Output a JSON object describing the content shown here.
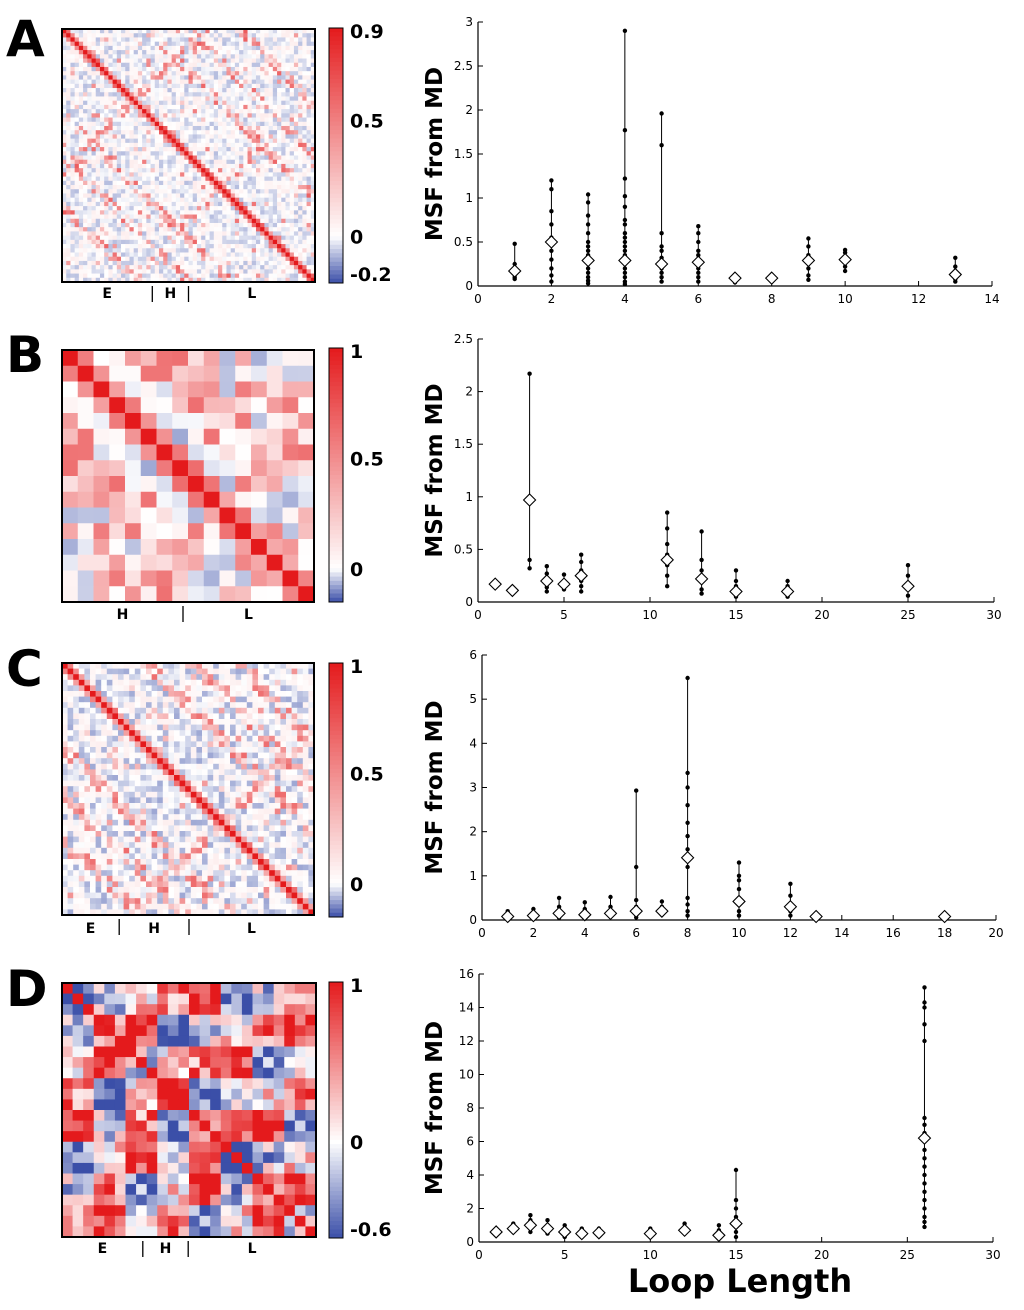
{
  "figure": {
    "xlabel": "Loop Length",
    "colorscale": {
      "low": "#3b4fa8",
      "mid": "#ffffff",
      "high": "#e41a1c"
    }
  },
  "panels": [
    {
      "letter": "A",
      "heatmap": {
        "n": 60,
        "colorbar_min": -0.2,
        "colorbar_max": 0.9,
        "colorbar_ticks": [
          "0.9",
          "0.5",
          "0",
          "-0.2"
        ],
        "colorbar_tick_values": [
          0.9,
          0.5,
          0,
          -0.2
        ],
        "regions": [
          {
            "label": "E",
            "start": 0,
            "end": 0.357
          },
          {
            "label": "H",
            "start": 0.357,
            "end": 0.5
          },
          {
            "label": "L",
            "start": 0.5,
            "end": 1.0
          }
        ],
        "style": "diagonal_off_lines"
      },
      "chart_data": {
        "type": "scatter",
        "title": "",
        "xlabel": "",
        "ylabel": "MSF from MD",
        "xlim": [
          0,
          14
        ],
        "ylim": [
          0,
          3
        ],
        "xticks": [
          0,
          2,
          4,
          6,
          8,
          10,
          12,
          14
        ],
        "yticks": [
          0,
          0.5,
          1,
          1.5,
          2,
          2.5,
          3
        ],
        "ytick_labels": [
          "0",
          "0.5",
          "1",
          "1.5",
          "2",
          "2.5",
          "3"
        ],
        "groups": [
          {
            "x": 1,
            "mean": 0.17,
            "points": [
              0.48,
              0.25,
              0.2,
              0.17,
              0.14,
              0.1,
              0.08
            ]
          },
          {
            "x": 2,
            "mean": 0.5,
            "points": [
              1.2,
              1.1,
              0.85,
              0.7,
              0.55,
              0.4,
              0.3,
              0.2,
              0.12,
              0.05
            ]
          },
          {
            "x": 3,
            "mean": 0.29,
            "points": [
              1.04,
              0.95,
              0.8,
              0.7,
              0.6,
              0.5,
              0.45,
              0.4,
              0.35,
              0.3,
              0.25,
              0.2,
              0.15,
              0.1,
              0.06,
              0.03
            ]
          },
          {
            "x": 4,
            "mean": 0.29,
            "points": [
              2.9,
              1.77,
              1.22,
              1.02,
              0.9,
              0.75,
              0.7,
              0.6,
              0.55,
              0.5,
              0.45,
              0.4,
              0.35,
              0.3,
              0.25,
              0.2,
              0.15,
              0.1,
              0.05,
              0.02
            ]
          },
          {
            "x": 5,
            "mean": 0.25,
            "points": [
              1.96,
              1.6,
              0.6,
              0.45,
              0.4,
              0.32,
              0.25,
              0.2,
              0.15,
              0.1,
              0.05
            ]
          },
          {
            "x": 6,
            "mean": 0.27,
            "points": [
              0.68,
              0.6,
              0.5,
              0.4,
              0.35,
              0.3,
              0.25,
              0.2,
              0.15,
              0.1,
              0.05
            ]
          },
          {
            "x": 7,
            "mean": 0.09,
            "points": [
              0.13,
              0.1,
              0.08,
              0.06,
              0.04
            ]
          },
          {
            "x": 8,
            "mean": 0.09,
            "points": [
              0.13,
              0.1,
              0.08,
              0.05
            ]
          },
          {
            "x": 9,
            "mean": 0.29,
            "points": [
              0.54,
              0.45,
              0.35,
              0.28,
              0.2,
              0.12,
              0.07
            ]
          },
          {
            "x": 10,
            "mean": 0.3,
            "points": [
              0.41,
              0.38,
              0.33,
              0.28,
              0.22,
              0.17
            ]
          },
          {
            "x": 13,
            "mean": 0.13,
            "points": [
              0.32,
              0.22,
              0.16,
              0.12,
              0.08,
              0.05
            ]
          }
        ]
      }
    },
    {
      "letter": "B",
      "heatmap": {
        "n": 16,
        "colorbar_min": -0.15,
        "colorbar_max": 1.0,
        "colorbar_ticks": [
          "1",
          "0.5",
          "0"
        ],
        "colorbar_tick_values": [
          1,
          0.5,
          0
        ],
        "regions": [
          {
            "label": "H",
            "start": 0,
            "end": 0.48
          },
          {
            "label": "L",
            "start": 0.48,
            "end": 1.0
          }
        ],
        "style": "diagonal_off_lines"
      },
      "chart_data": {
        "type": "scatter",
        "title": "",
        "xlabel": "",
        "ylabel": "MSF from MD",
        "xlim": [
          0,
          30
        ],
        "ylim": [
          0,
          2.5
        ],
        "xticks": [
          0,
          5,
          10,
          15,
          20,
          25,
          30
        ],
        "yticks": [
          0,
          0.5,
          1,
          1.5,
          2,
          2.5
        ],
        "ytick_labels": [
          "0",
          "0.5",
          "1",
          "1.5",
          "2",
          "2.5"
        ],
        "groups": [
          {
            "x": 1,
            "mean": 0.17,
            "points": [
              0.2,
              0.17,
              0.14
            ]
          },
          {
            "x": 2,
            "mean": 0.11,
            "points": [
              0.14,
              0.11,
              0.08
            ]
          },
          {
            "x": 3,
            "mean": 0.97,
            "points": [
              2.17,
              0.4,
              0.32
            ]
          },
          {
            "x": 4,
            "mean": 0.2,
            "points": [
              0.34,
              0.27,
              0.2,
              0.14,
              0.1
            ]
          },
          {
            "x": 5,
            "mean": 0.17,
            "points": [
              0.26,
              0.2,
              0.16,
              0.12
            ]
          },
          {
            "x": 6,
            "mean": 0.25,
            "points": [
              0.45,
              0.38,
              0.3,
              0.25,
              0.2,
              0.15,
              0.1
            ]
          },
          {
            "x": 11,
            "mean": 0.4,
            "points": [
              0.85,
              0.7,
              0.55,
              0.45,
              0.35,
              0.25,
              0.15
            ]
          },
          {
            "x": 13,
            "mean": 0.22,
            "points": [
              0.67,
              0.4,
              0.3,
              0.2,
              0.12,
              0.08
            ]
          },
          {
            "x": 15,
            "mean": 0.1,
            "points": [
              0.3,
              0.2,
              0.15,
              0.1,
              0.05
            ]
          },
          {
            "x": 18,
            "mean": 0.1,
            "points": [
              0.2,
              0.15,
              0.1,
              0.05
            ]
          },
          {
            "x": 25,
            "mean": 0.15,
            "points": [
              0.35,
              0.25,
              0.18,
              0.12,
              0.06
            ]
          }
        ]
      }
    },
    {
      "letter": "C",
      "heatmap": {
        "n": 45,
        "colorbar_min": -0.15,
        "colorbar_max": 1.0,
        "colorbar_ticks": [
          "1",
          "0.5",
          "0"
        ],
        "colorbar_tick_values": [
          1,
          0.5,
          0
        ],
        "regions": [
          {
            "label": "E",
            "start": 0,
            "end": 0.227
          },
          {
            "label": "H",
            "start": 0.227,
            "end": 0.504
          },
          {
            "label": "L",
            "start": 0.504,
            "end": 1.0
          }
        ],
        "style": "diagonal_off_lines"
      },
      "chart_data": {
        "type": "scatter",
        "title": "",
        "xlabel": "",
        "ylabel": "MSF from MD",
        "xlim": [
          0,
          20
        ],
        "ylim": [
          0,
          6
        ],
        "xticks": [
          0,
          2,
          4,
          6,
          8,
          10,
          12,
          14,
          16,
          18,
          20
        ],
        "yticks": [
          0,
          1,
          2,
          3,
          4,
          5,
          6
        ],
        "ytick_labels": [
          "0",
          "1",
          "2",
          "3",
          "4",
          "5",
          "6"
        ],
        "groups": [
          {
            "x": 1,
            "mean": 0.08,
            "points": [
              0.2,
              0.1,
              0.05
            ]
          },
          {
            "x": 2,
            "mean": 0.1,
            "points": [
              0.25,
              0.15,
              0.08,
              0.04
            ]
          },
          {
            "x": 3,
            "mean": 0.15,
            "points": [
              0.5,
              0.3,
              0.2,
              0.1,
              0.05
            ]
          },
          {
            "x": 4,
            "mean": 0.12,
            "points": [
              0.4,
              0.25,
              0.15,
              0.08
            ]
          },
          {
            "x": 5,
            "mean": 0.15,
            "points": [
              0.52,
              0.3,
              0.18,
              0.1
            ]
          },
          {
            "x": 6,
            "mean": 0.2,
            "points": [
              2.93,
              1.2,
              0.45,
              0.3,
              0.2,
              0.12,
              0.06
            ]
          },
          {
            "x": 7,
            "mean": 0.2,
            "points": [
              0.42,
              0.3,
              0.2,
              0.12
            ]
          },
          {
            "x": 8,
            "mean": 1.41,
            "points": [
              5.48,
              3.33,
              3.0,
              2.6,
              2.2,
              1.9,
              1.6,
              1.4,
              1.2,
              0.5,
              0.35,
              0.2,
              0.1
            ]
          },
          {
            "x": 10,
            "mean": 0.42,
            "points": [
              1.3,
              1.0,
              0.9,
              0.7,
              0.5,
              0.35,
              0.2,
              0.1
            ]
          },
          {
            "x": 12,
            "mean": 0.3,
            "points": [
              0.82,
              0.55,
              0.35,
              0.2,
              0.1
            ]
          },
          {
            "x": 13,
            "mean": 0.08,
            "points": [
              0.15,
              0.08,
              0.04
            ]
          },
          {
            "x": 18,
            "mean": 0.08,
            "points": [
              0.15,
              0.1,
              0.05
            ]
          }
        ]
      }
    },
    {
      "letter": "D",
      "heatmap": {
        "n": 24,
        "colorbar_min": -0.6,
        "colorbar_max": 1.0,
        "colorbar_ticks": [
          "1",
          "0",
          "-0.6"
        ],
        "colorbar_tick_values": [
          1,
          0,
          -0.6
        ],
        "regions": [
          {
            "label": "E",
            "start": 0,
            "end": 0.318
          },
          {
            "label": "H",
            "start": 0.318,
            "end": 0.497
          },
          {
            "label": "L",
            "start": 0.497,
            "end": 1.0
          }
        ],
        "style": "block_mixed"
      },
      "chart_data": {
        "type": "scatter",
        "title": "",
        "xlabel": "Loop Length",
        "ylabel": "MSF from MD",
        "xlim": [
          0,
          30
        ],
        "ylim": [
          0,
          16
        ],
        "xticks": [
          0,
          5,
          10,
          15,
          20,
          25,
          30
        ],
        "yticks": [
          0,
          2,
          4,
          6,
          8,
          10,
          12,
          14,
          16
        ],
        "ytick_labels": [
          "0",
          "2",
          "4",
          "6",
          "8",
          "10",
          "12",
          "14",
          "16"
        ],
        "groups": [
          {
            "x": 1,
            "mean": 0.6,
            "points": [
              0.7,
              0.6,
              0.5
            ]
          },
          {
            "x": 2,
            "mean": 0.8,
            "points": [
              1.1,
              0.9,
              0.7,
              0.6
            ]
          },
          {
            "x": 3,
            "mean": 1.0,
            "points": [
              1.6,
              1.3,
              1.0,
              0.8,
              0.6
            ]
          },
          {
            "x": 4,
            "mean": 0.8,
            "points": [
              1.3,
              1.0,
              0.8,
              0.6,
              0.5
            ]
          },
          {
            "x": 5,
            "mean": 0.6,
            "points": [
              1.0,
              0.8,
              0.6,
              0.4,
              0.3
            ]
          },
          {
            "x": 6,
            "mean": 0.5,
            "points": [
              0.8,
              0.6,
              0.5,
              0.3
            ]
          },
          {
            "x": 7,
            "mean": 0.55,
            "points": [
              0.8,
              0.6,
              0.5,
              0.4
            ]
          },
          {
            "x": 10,
            "mean": 0.5,
            "points": [
              0.8,
              0.6,
              0.4,
              0.3
            ]
          },
          {
            "x": 12,
            "mean": 0.7,
            "points": [
              1.1,
              0.9,
              0.7,
              0.5
            ]
          },
          {
            "x": 14,
            "mean": 0.4,
            "points": [
              1.0,
              0.7,
              0.4,
              0.25
            ]
          },
          {
            "x": 15,
            "mean": 1.1,
            "points": [
              4.3,
              2.5,
              2.0,
              1.5,
              1.2,
              0.9,
              0.6,
              0.3
            ]
          },
          {
            "x": 26,
            "mean": 6.2,
            "points": [
              15.2,
              14.3,
              14.0,
              13.0,
              12.0,
              7.4,
              7.0,
              6.5,
              6.0,
              5.5,
              5.0,
              4.5,
              4.0,
              3.5,
              3.0,
              2.5,
              2.0,
              1.5,
              1.2,
              0.9
            ]
          }
        ]
      }
    }
  ]
}
